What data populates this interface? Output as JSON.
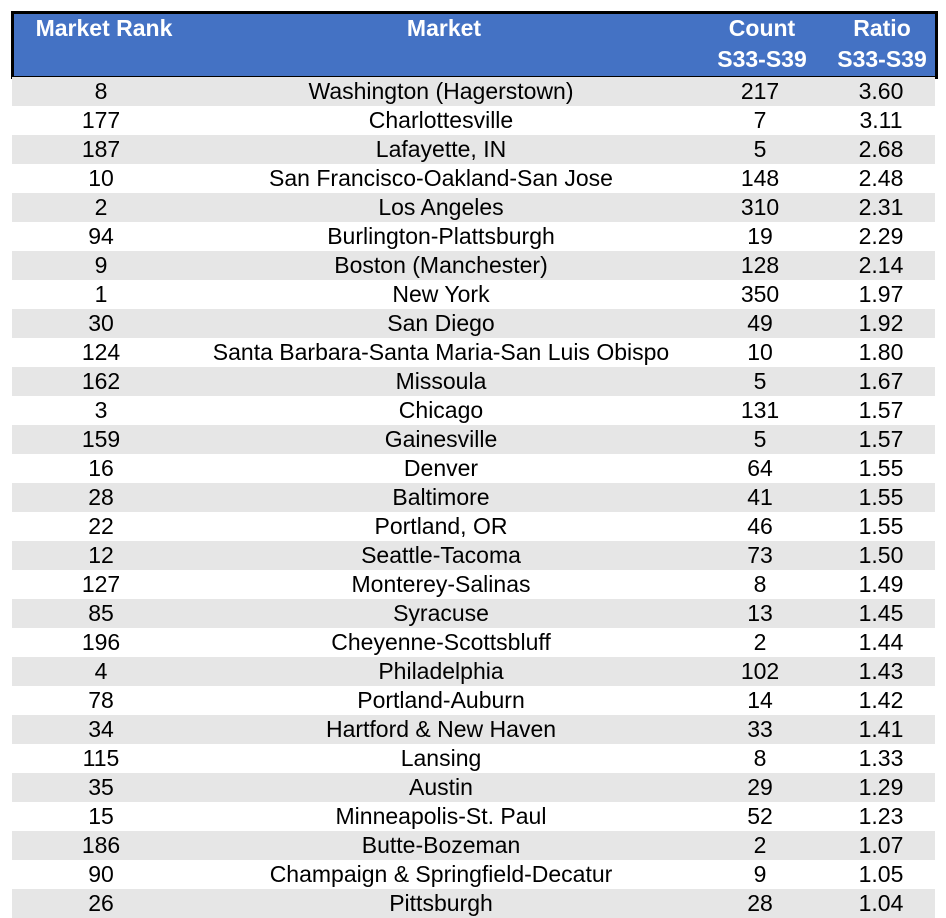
{
  "header": {
    "rank_label": "Market Rank",
    "market_label": "Market",
    "count_label_1": "Count",
    "count_label_2": "S33-S39",
    "ratio_label_1": "Ratio",
    "ratio_label_2": "S33-S39"
  },
  "rows": [
    {
      "rank": "8",
      "market": "Washington (Hagerstown)",
      "count": "217",
      "ratio": "3.60"
    },
    {
      "rank": "177",
      "market": "Charlottesville",
      "count": "7",
      "ratio": "3.11"
    },
    {
      "rank": "187",
      "market": "Lafayette, IN",
      "count": "5",
      "ratio": "2.68"
    },
    {
      "rank": "10",
      "market": "San Francisco-Oakland-San Jose",
      "count": "148",
      "ratio": "2.48"
    },
    {
      "rank": "2",
      "market": "Los Angeles",
      "count": "310",
      "ratio": "2.31"
    },
    {
      "rank": "94",
      "market": "Burlington-Plattsburgh",
      "count": "19",
      "ratio": "2.29"
    },
    {
      "rank": "9",
      "market": "Boston (Manchester)",
      "count": "128",
      "ratio": "2.14"
    },
    {
      "rank": "1",
      "market": "New York",
      "count": "350",
      "ratio": "1.97"
    },
    {
      "rank": "30",
      "market": "San Diego",
      "count": "49",
      "ratio": "1.92"
    },
    {
      "rank": "124",
      "market": "Santa Barbara-Santa Maria-San Luis Obispo",
      "count": "10",
      "ratio": "1.80"
    },
    {
      "rank": "162",
      "market": "Missoula",
      "count": "5",
      "ratio": "1.67"
    },
    {
      "rank": "3",
      "market": "Chicago",
      "count": "131",
      "ratio": "1.57"
    },
    {
      "rank": "159",
      "market": "Gainesville",
      "count": "5",
      "ratio": "1.57"
    },
    {
      "rank": "16",
      "market": "Denver",
      "count": "64",
      "ratio": "1.55"
    },
    {
      "rank": "28",
      "market": "Baltimore",
      "count": "41",
      "ratio": "1.55"
    },
    {
      "rank": "22",
      "market": "Portland, OR",
      "count": "46",
      "ratio": "1.55"
    },
    {
      "rank": "12",
      "market": "Seattle-Tacoma",
      "count": "73",
      "ratio": "1.50"
    },
    {
      "rank": "127",
      "market": "Monterey-Salinas",
      "count": "8",
      "ratio": "1.49"
    },
    {
      "rank": "85",
      "market": "Syracuse",
      "count": "13",
      "ratio": "1.45"
    },
    {
      "rank": "196",
      "market": "Cheyenne-Scottsbluff",
      "count": "2",
      "ratio": "1.44"
    },
    {
      "rank": "4",
      "market": "Philadelphia",
      "count": "102",
      "ratio": "1.43"
    },
    {
      "rank": "78",
      "market": "Portland-Auburn",
      "count": "14",
      "ratio": "1.42"
    },
    {
      "rank": "34",
      "market": "Hartford & New Haven",
      "count": "33",
      "ratio": "1.41"
    },
    {
      "rank": "115",
      "market": "Lansing",
      "count": "8",
      "ratio": "1.33"
    },
    {
      "rank": "35",
      "market": "Austin",
      "count": "29",
      "ratio": "1.29"
    },
    {
      "rank": "15",
      "market": "Minneapolis-St. Paul",
      "count": "52",
      "ratio": "1.23"
    },
    {
      "rank": "186",
      "market": "Butte-Bozeman",
      "count": "2",
      "ratio": "1.07"
    },
    {
      "rank": "90",
      "market": "Champaign & Springfield-Decatur",
      "count": "9",
      "ratio": "1.05"
    },
    {
      "rank": "26",
      "market": "Pittsburgh",
      "count": "28",
      "ratio": "1.04"
    }
  ],
  "colors": {
    "header_bg": "#4472c4",
    "header_text": "#ffffff",
    "row_band": "#e6e6e6",
    "row_plain": "#ffffff"
  }
}
